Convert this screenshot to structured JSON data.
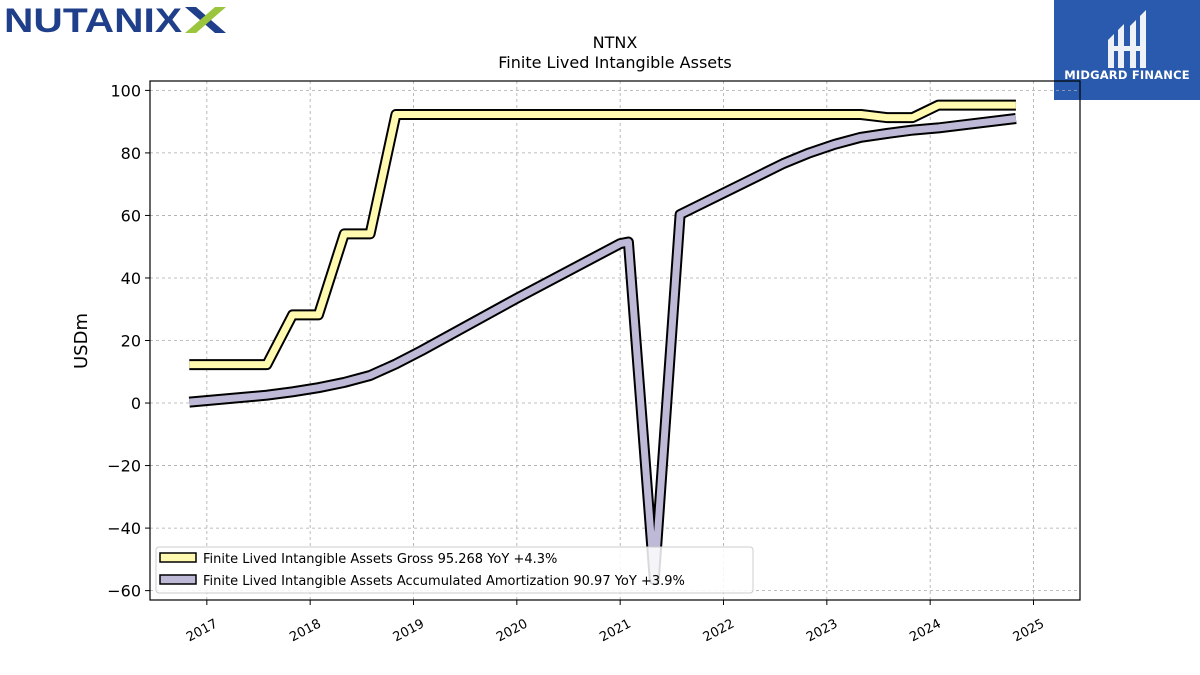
{
  "logos": {
    "left": "NUTANIX",
    "right": "MIDGARD FINANCE"
  },
  "colors": {
    "gross": "#fffab0",
    "amortization": "#bdb9d6",
    "outline": "#000000",
    "grid": "#aaaaaa",
    "nutanix_blue": "#1f3f8a",
    "nutanix_green": "#9bc53d",
    "midgard_blue": "#2a5aad"
  },
  "chart_data": {
    "type": "line",
    "title": "NTNX",
    "subtitle": "Finite Lived Intangible Assets",
    "xlabel": "",
    "ylabel": "USDm",
    "xlim": [
      2016.45,
      2025.45
    ],
    "ylim": [
      -63,
      103
    ],
    "x_ticks": [
      2017,
      2018,
      2019,
      2020,
      2021,
      2022,
      2023,
      2024,
      2025
    ],
    "x_tick_labels": [
      "2017",
      "2018",
      "2019",
      "2020",
      "2021",
      "2022",
      "2023",
      "2024",
      "2025"
    ],
    "y_ticks": [
      -60,
      -40,
      -20,
      0,
      20,
      40,
      60,
      80,
      100
    ],
    "y_tick_labels": [
      "−60",
      "−40",
      "−20",
      "0",
      "20",
      "40",
      "60",
      "80",
      "100"
    ],
    "grid": true,
    "legend_position": "lower-left",
    "series": [
      {
        "name": "Finite Lived Intangible Assets Gross",
        "legend_text": "Finite Lived Intangible Assets Gross  95.268 YoY +4.3%",
        "color": "#fffab0",
        "points": [
          [
            2016.83,
            12.3
          ],
          [
            2017.58,
            12.3
          ],
          [
            2017.83,
            28.2
          ],
          [
            2018.08,
            28.2
          ],
          [
            2018.33,
            54.1
          ],
          [
            2018.58,
            54.1
          ],
          [
            2018.83,
            92.3
          ],
          [
            2019.08,
            92.3
          ],
          [
            2020.0,
            92.3
          ],
          [
            2021.0,
            92.3
          ],
          [
            2022.0,
            92.3
          ],
          [
            2023.0,
            92.3
          ],
          [
            2023.33,
            92.3
          ],
          [
            2023.58,
            91.3
          ],
          [
            2023.83,
            91.3
          ],
          [
            2024.08,
            95.3
          ],
          [
            2024.33,
            95.3
          ],
          [
            2024.58,
            95.3
          ],
          [
            2024.83,
            95.3
          ]
        ]
      },
      {
        "name": "Finite Lived Intangible Assets Accumulated Amortization",
        "legend_text": "Finite Lived Intangible Assets Accumulated Amortization  90.97 YoY +3.9%",
        "color": "#bdb9d6",
        "points": [
          [
            2016.83,
            0.3
          ],
          [
            2017.58,
            2.5
          ],
          [
            2017.83,
            3.6
          ],
          [
            2018.08,
            4.9
          ],
          [
            2018.33,
            6.6
          ],
          [
            2018.58,
            8.8
          ],
          [
            2018.83,
            12.5
          ],
          [
            2019.08,
            16.8
          ],
          [
            2020.0,
            33.5
          ],
          [
            2021.0,
            51.0
          ],
          [
            2021.08,
            51.5
          ],
          [
            2021.33,
            -56.5
          ],
          [
            2021.58,
            60.3
          ],
          [
            2022.58,
            76.6
          ],
          [
            2022.83,
            80.0
          ],
          [
            2023.08,
            82.8
          ],
          [
            2023.33,
            85.0
          ],
          [
            2023.58,
            86.2
          ],
          [
            2023.83,
            87.3
          ],
          [
            2024.08,
            88.0
          ],
          [
            2024.83,
            91.0
          ]
        ]
      }
    ]
  }
}
